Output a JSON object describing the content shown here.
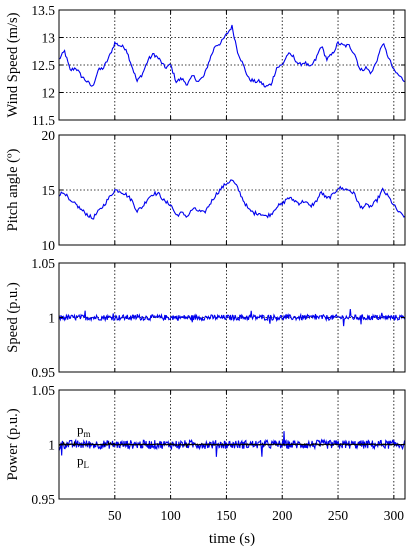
{
  "chart_data": [
    {
      "type": "line",
      "ylabel": "Wind Speed (m/s)",
      "ylim": [
        11.5,
        13.5
      ],
      "y_ticks": [
        "11.5",
        "12",
        "12.5",
        "13",
        "13.5"
      ],
      "xlim": [
        0,
        310
      ],
      "grid": "dotted",
      "series": [
        {
          "color": "#0000ee",
          "x": [
            0,
            5,
            10,
            15,
            20,
            25,
            30,
            35,
            40,
            45,
            50,
            55,
            60,
            65,
            70,
            75,
            80,
            85,
            90,
            95,
            100,
            105,
            110,
            115,
            120,
            125,
            130,
            135,
            140,
            145,
            150,
            155,
            160,
            165,
            170,
            175,
            180,
            185,
            190,
            195,
            200,
            205,
            210,
            215,
            220,
            225,
            230,
            235,
            240,
            245,
            250,
            255,
            260,
            265,
            270,
            275,
            280,
            285,
            290,
            295,
            300,
            305,
            310
          ],
          "y": [
            12.6,
            12.75,
            12.4,
            12.45,
            12.3,
            12.2,
            12.1,
            12.4,
            12.45,
            12.65,
            12.9,
            12.85,
            12.8,
            12.5,
            12.2,
            12.35,
            12.6,
            12.7,
            12.6,
            12.45,
            12.5,
            12.2,
            12.25,
            12.15,
            12.3,
            12.2,
            12.3,
            12.6,
            12.85,
            12.9,
            13.05,
            13.2,
            12.75,
            12.5,
            12.25,
            12.2,
            12.2,
            12.1,
            12.15,
            12.45,
            12.5,
            12.7,
            12.65,
            12.5,
            12.55,
            12.45,
            12.6,
            12.85,
            12.6,
            12.7,
            12.9,
            12.85,
            12.85,
            12.7,
            12.4,
            12.45,
            12.35,
            12.6,
            12.9,
            12.65,
            12.4,
            12.3,
            12.2
          ]
        }
      ]
    },
    {
      "type": "line",
      "ylabel": "Pitch angle (º)",
      "ylim": [
        10,
        20
      ],
      "y_ticks": [
        "10",
        "15",
        "20"
      ],
      "xlim": [
        0,
        310
      ],
      "grid": "dotted",
      "series": [
        {
          "color": "#0000ee",
          "x": [
            0,
            5,
            10,
            15,
            20,
            25,
            30,
            35,
            40,
            45,
            50,
            55,
            60,
            65,
            70,
            75,
            80,
            85,
            90,
            95,
            100,
            105,
            110,
            115,
            120,
            125,
            130,
            135,
            140,
            145,
            150,
            155,
            160,
            165,
            170,
            175,
            180,
            185,
            190,
            195,
            200,
            205,
            210,
            215,
            220,
            225,
            230,
            235,
            240,
            245,
            250,
            255,
            260,
            265,
            270,
            275,
            280,
            285,
            290,
            295,
            300,
            305,
            310
          ],
          "y": [
            14.6,
            14.8,
            13.9,
            13.7,
            13.2,
            12.8,
            12.4,
            13.0,
            13.6,
            14.3,
            15.0,
            14.9,
            14.6,
            14.1,
            13.1,
            13.5,
            14.3,
            14.7,
            14.6,
            13.9,
            13.7,
            12.7,
            12.9,
            12.6,
            13.3,
            13.1,
            12.9,
            13.7,
            14.5,
            15.1,
            15.6,
            15.9,
            15.2,
            14.1,
            13.2,
            12.9,
            12.9,
            12.6,
            12.8,
            13.5,
            13.7,
            14.3,
            14.1,
            13.8,
            14.0,
            13.5,
            13.9,
            14.8,
            14.2,
            14.5,
            15.2,
            15.1,
            15.0,
            14.6,
            13.4,
            13.6,
            13.5,
            14.1,
            15.0,
            14.4,
            13.6,
            12.9,
            12.6
          ]
        }
      ]
    },
    {
      "type": "line",
      "ylabel": "Speed (p.u.)",
      "ylim": [
        0.95,
        1.05
      ],
      "y_ticks": [
        "0.95",
        "1",
        "1.05"
      ],
      "xlim": [
        0,
        310
      ],
      "grid": "dotted",
      "series": [
        {
          "color": "#0000ee",
          "mean": 1.0,
          "amplitude": 0.0025
        }
      ]
    },
    {
      "type": "line",
      "ylabel": "Power (p.u.)",
      "xlabel": "time (s)",
      "ylim": [
        0.95,
        1.05
      ],
      "y_ticks": [
        "0.95",
        "1",
        "1.05"
      ],
      "x_ticks": [
        "50",
        "100",
        "150",
        "200",
        "250",
        "300"
      ],
      "xlim": [
        0,
        310
      ],
      "grid": "dotted",
      "series": [
        {
          "name": "pm",
          "color": "#0000ee",
          "mean": 1.0,
          "amplitude": 0.004
        },
        {
          "name": "pL",
          "color": "#000000",
          "mean": 1.0,
          "amplitude": 0.0005
        }
      ],
      "legend": [
        {
          "main": "p",
          "sub": "m",
          "color": "#2a3fd6"
        },
        {
          "main": "p",
          "sub": "L",
          "color": "#000000"
        }
      ]
    }
  ]
}
